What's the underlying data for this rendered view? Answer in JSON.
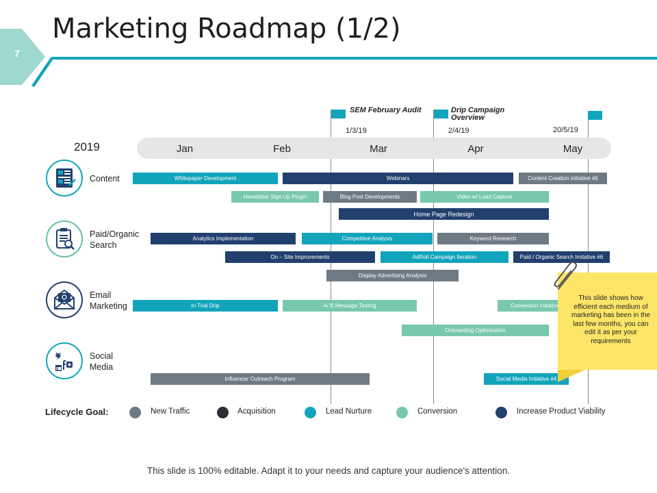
{
  "header": {
    "title": "Marketing Roadmap (1/2)",
    "page_number": "7"
  },
  "timeline": {
    "year": "2019",
    "months": [
      "Jan",
      "Feb",
      "Mar",
      "Apr",
      "May"
    ],
    "milestones": [
      {
        "label": "SEM February Audit",
        "date": "1/3/19"
      },
      {
        "label": "Drip Campaign Overview",
        "date": "2/4/19"
      },
      {
        "label": "",
        "date": "20/5/19"
      }
    ]
  },
  "categories": [
    {
      "label": "Content",
      "icon": "content-icon"
    },
    {
      "label": "Paid/Organic Search",
      "icon": "search-clipboard-icon"
    },
    {
      "label": "Email Marketing",
      "icon": "envelope-icon"
    },
    {
      "label": "Social Media",
      "icon": "social-media-icon"
    }
  ],
  "tasks": [
    {
      "label": "Whitepaper Development",
      "goal": "Lead Nurture"
    },
    {
      "label": "Webinars",
      "goal": "Increase Product Viability"
    },
    {
      "label": "Content Creation initiative #6",
      "goal": "New Traffic"
    },
    {
      "label": "Newsletter Sign Up Plugin",
      "goal": "Conversion"
    },
    {
      "label": "Blog Post Developments",
      "goal": "New Traffic"
    },
    {
      "label": "Video w/ Lead Capture",
      "goal": "Conversion"
    },
    {
      "label": "Home Page Redesign",
      "goal": "Increase Product Viability"
    },
    {
      "label": "Analytics Implementation",
      "goal": "Increase Product Viability"
    },
    {
      "label": "Competitive Analysis",
      "goal": "Lead Nurture"
    },
    {
      "label": "Keyword Research",
      "goal": "New Traffic"
    },
    {
      "label": "On – Site Improvements",
      "goal": "Increase Product Viability"
    },
    {
      "label": "AdRoll Campaign Iteration",
      "goal": "Lead Nurture"
    },
    {
      "label": "Paid / Organic Search Imitative #6",
      "goal": "Increase Product Viability"
    },
    {
      "label": "Display Advertising Analysis",
      "goal": "New Traffic"
    },
    {
      "label": "In Trial Drip",
      "goal": "Lead Nurture"
    },
    {
      "label": "A/ B Message Testing",
      "goal": "Conversion"
    },
    {
      "label": "Conversion Initiative",
      "goal": "Conversion"
    },
    {
      "label": "Onboarding Optimization",
      "goal": "Conversion"
    },
    {
      "label": "Influencer Outreach Program",
      "goal": "New Traffic"
    },
    {
      "label": "Social Media Initiative #4",
      "goal": "Lead Nurture"
    }
  ],
  "note": {
    "text": "This slide shows how efficient each medium of marketing has been in the last few months, you can edit it as per your requirements"
  },
  "legend": {
    "title": "Lifecycle Goal:",
    "items": [
      {
        "label": "New Traffic",
        "color": "#6e7a83"
      },
      {
        "label": "Acquisition",
        "color": "#2b2f33"
      },
      {
        "label": "Lead Nurture",
        "color": "#12a4bb"
      },
      {
        "label": "Conversion",
        "color": "#77c8ad"
      },
      {
        "label": "Increase Product Viability",
        "color": "#22406e"
      }
    ]
  },
  "footer": {
    "text": "This slide is 100% editable. Adapt it to your needs and capture your audience's attention."
  }
}
